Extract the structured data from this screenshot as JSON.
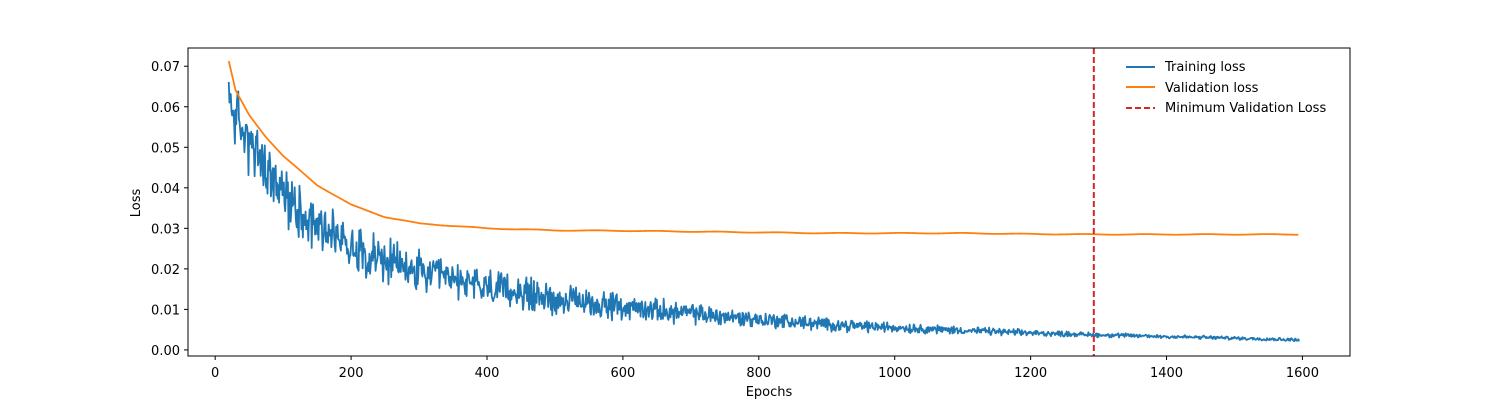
{
  "chart_data": {
    "type": "line",
    "title": "",
    "xlabel": "Epochs",
    "ylabel": "Loss",
    "xlim": [
      -40,
      1670
    ],
    "ylim": [
      -0.0015,
      0.0745
    ],
    "xticks": [
      0,
      200,
      400,
      600,
      800,
      1000,
      1200,
      1400,
      1600
    ],
    "yticks": [
      0.0,
      0.01,
      0.02,
      0.03,
      0.04,
      0.05,
      0.06,
      0.07
    ],
    "ytick_labels": [
      "0.00",
      "0.01",
      "0.02",
      "0.03",
      "0.04",
      "0.05",
      "0.06",
      "0.07"
    ],
    "grid": false,
    "legend_position": "top-right",
    "x_start": 20,
    "x_end": 1595,
    "series": [
      {
        "name": "Training loss",
        "color": "#1f77b4",
        "anchor_x": [
          20,
          40,
          60,
          80,
          100,
          150,
          200,
          250,
          300,
          400,
          500,
          600,
          700,
          800,
          900,
          1000,
          1100,
          1200,
          1300,
          1400,
          1500,
          1595
        ],
        "anchor_y": [
          0.062,
          0.054,
          0.048,
          0.043,
          0.038,
          0.031,
          0.026,
          0.022,
          0.019,
          0.0155,
          0.0125,
          0.0105,
          0.009,
          0.0075,
          0.0063,
          0.0055,
          0.0048,
          0.0042,
          0.0037,
          0.0033,
          0.0029,
          0.0025
        ],
        "noise_start": 0.0055,
        "noise_end": 0.0003
      },
      {
        "name": "Validation loss",
        "color": "#ff7f0e",
        "anchor_x": [
          20,
          30,
          50,
          75,
          100,
          150,
          200,
          250,
          300,
          400,
          500,
          600,
          700,
          800,
          900,
          1000,
          1100,
          1200,
          1300,
          1400,
          1500,
          1595
        ],
        "anchor_y": [
          0.0712,
          0.064,
          0.058,
          0.0525,
          0.0478,
          0.0407,
          0.0358,
          0.0328,
          0.0312,
          0.03,
          0.0295,
          0.0294,
          0.0292,
          0.029,
          0.0288,
          0.0288,
          0.0288,
          0.0286,
          0.0285,
          0.0285,
          0.0285,
          0.0285
        ]
      }
    ],
    "annotations": [
      {
        "type": "vline",
        "name": "Minimum Validation Loss",
        "x": 1293,
        "color": "#d62728",
        "style": "dashed"
      }
    ]
  }
}
